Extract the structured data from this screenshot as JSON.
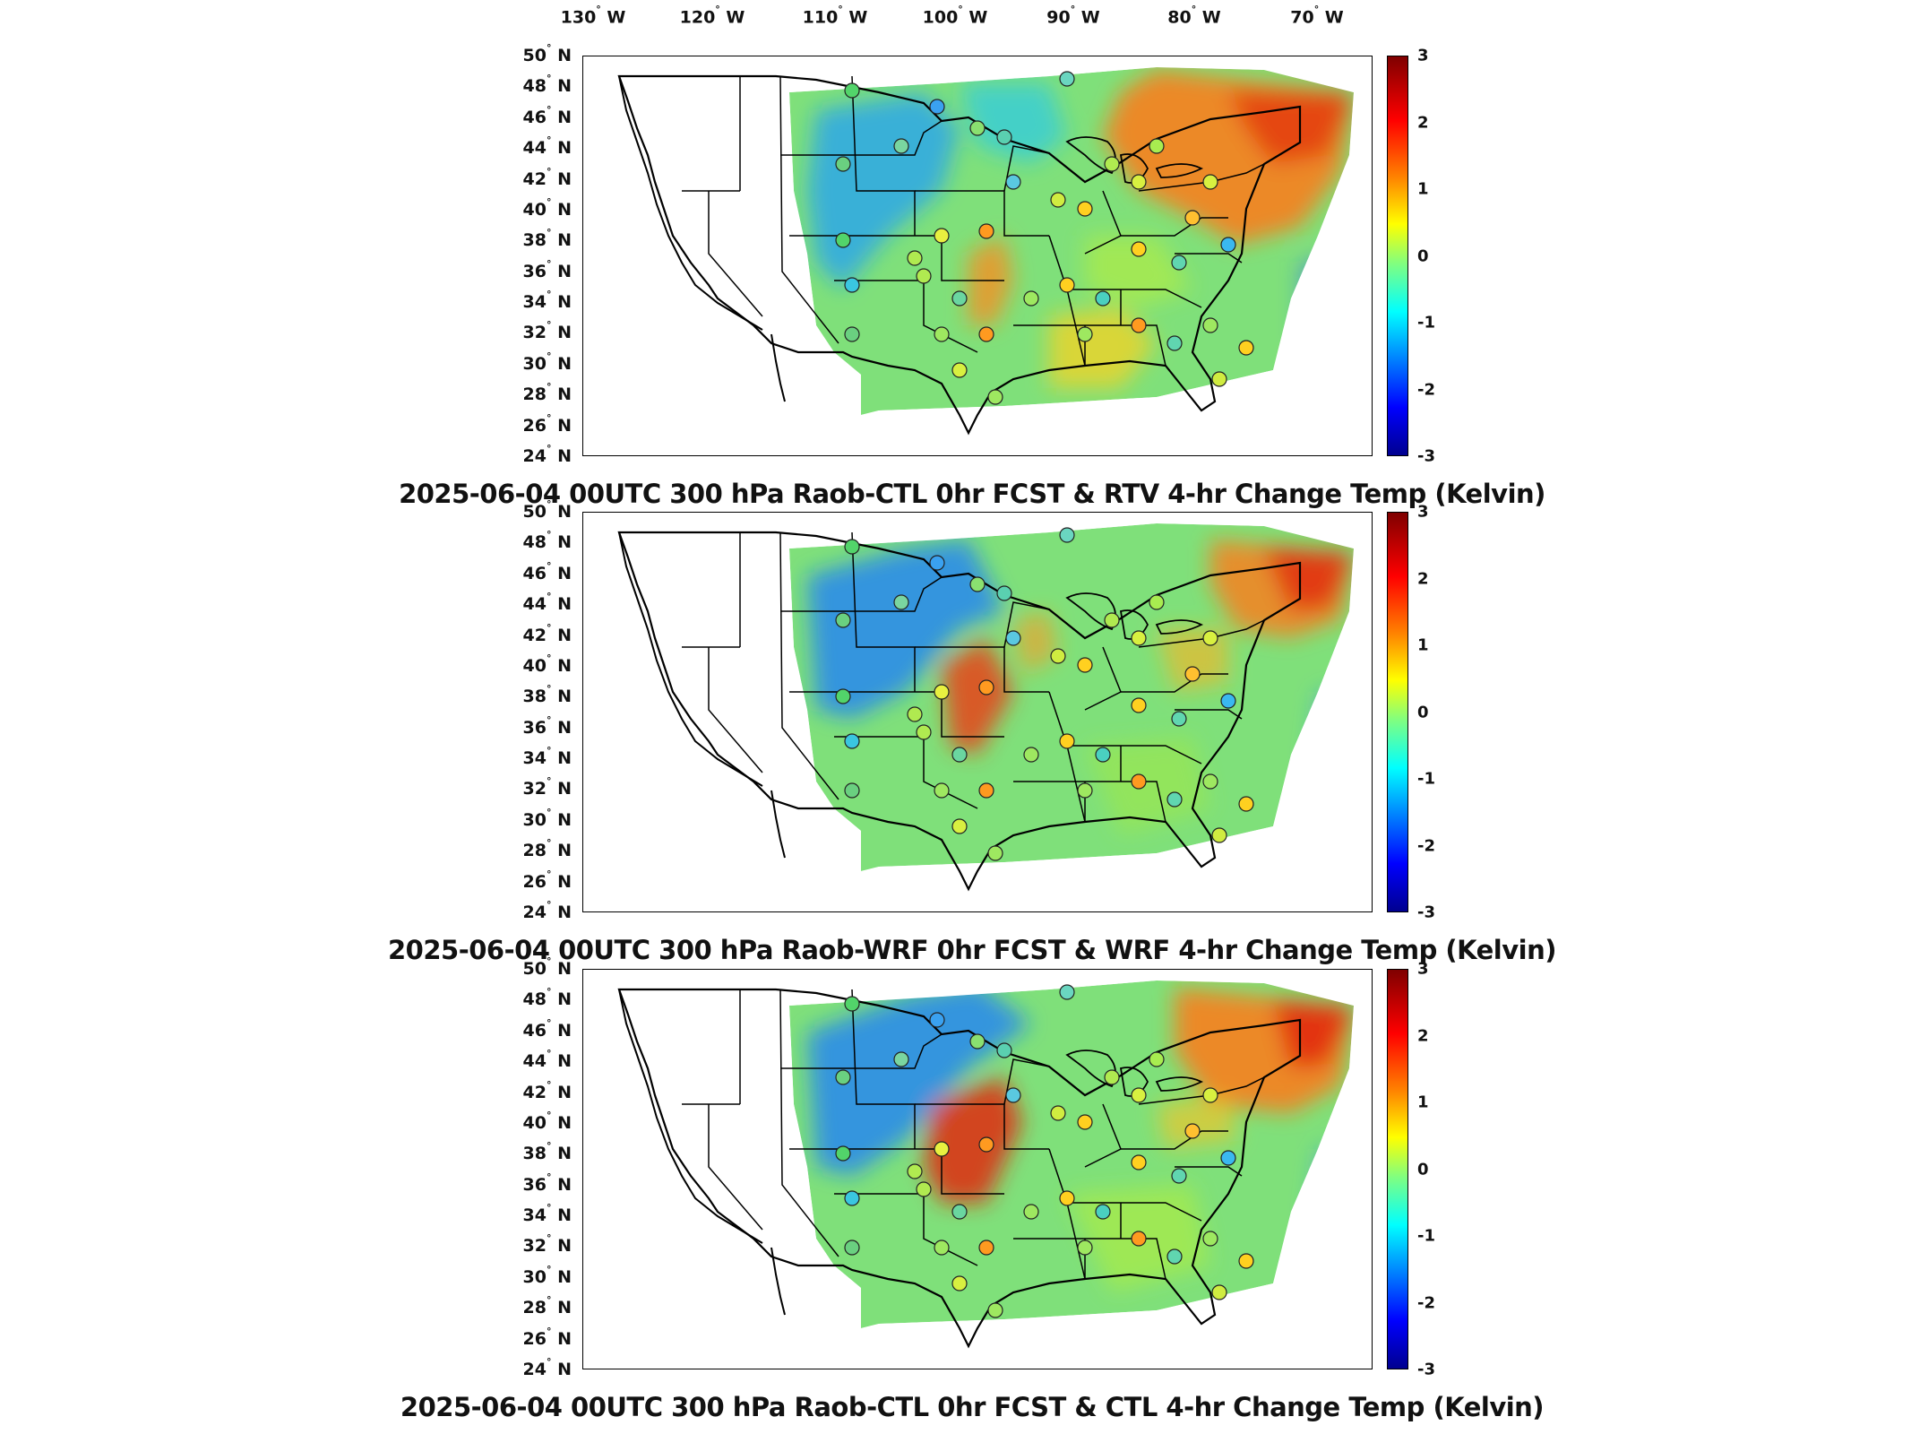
{
  "longitude_labels": [
    "130",
    "120",
    "110",
    "100",
    "90",
    "80",
    "70"
  ],
  "lon_suffix": "W",
  "latitude_labels": [
    "50",
    "48",
    "46",
    "44",
    "42",
    "40",
    "38",
    "36",
    "34",
    "32",
    "30",
    "28",
    "26",
    "24"
  ],
  "lat_suffix": "N",
  "degree_symbol": "°",
  "colorbar": {
    "ticks": [
      "3",
      "2",
      "1",
      "0",
      "-1",
      "-2",
      "-3"
    ],
    "colors": [
      "#7f0000",
      "#ff0000",
      "#ff8000",
      "#ffff00",
      "#80ff80",
      "#00ffff",
      "#0080ff",
      "#0000ff",
      "#00008f"
    ],
    "range": [
      -3,
      3
    ]
  },
  "panels": [
    {
      "title": "2025-06-04 00UTC 300 hPa Raob-CTL 0hr FCST & RTV 4-hr Change Temp (Kelvin)"
    },
    {
      "title": "2025-06-04 00UTC 300 hPa Raob-WRF 0hr FCST & WRF 4-hr Change Temp (Kelvin)"
    },
    {
      "title": "2025-06-04 00UTC 300 hPa Raob-CTL 0hr FCST & CTL 4-hr Change Temp (Kelvin)"
    }
  ]
}
